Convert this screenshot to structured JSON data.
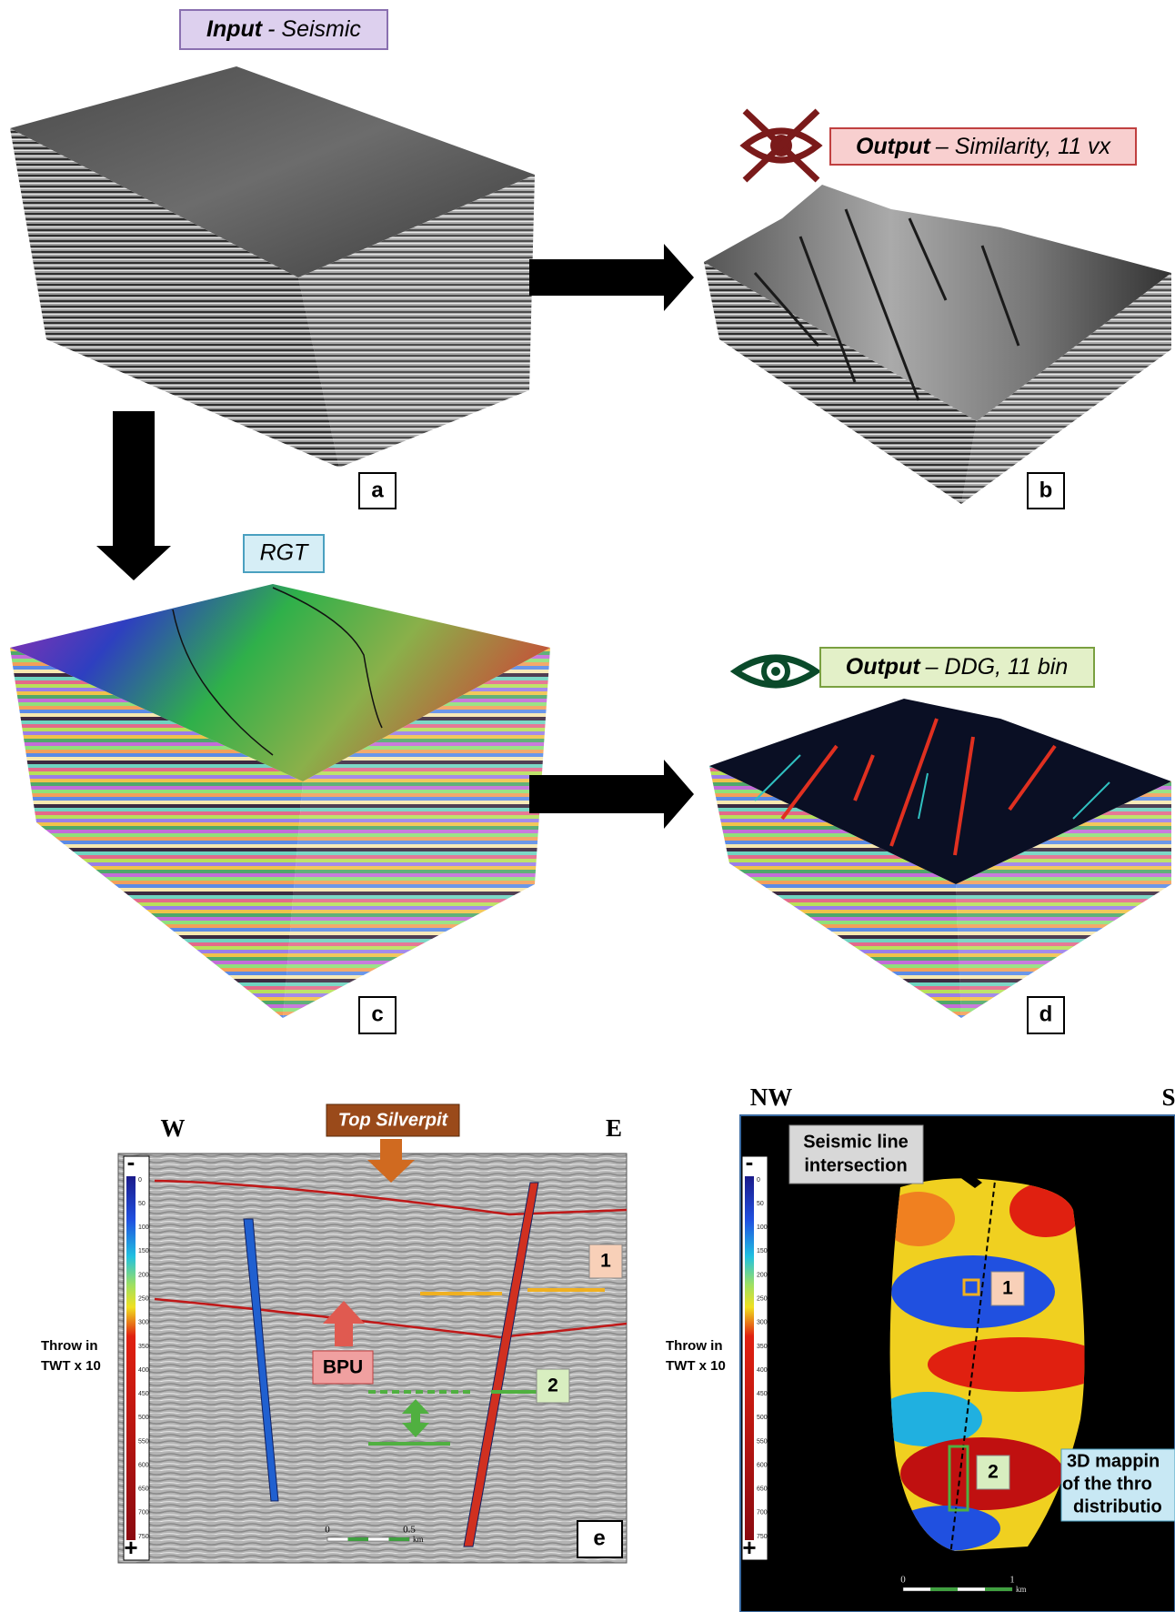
{
  "panels": {
    "a": {
      "title_bold": "Input",
      "title_rest": "- Seismic",
      "letter": "a"
    },
    "b": {
      "title_bold": "Output",
      "title_rest": "– Similarity, 11 vx",
      "letter": "b"
    },
    "c": {
      "title": "RGT",
      "letter": "c"
    },
    "d": {
      "title_bold": "Output",
      "title_rest": "– DDG, 11 bin",
      "letter": "d"
    },
    "e": {
      "west": "W",
      "east": "E",
      "horizon_top": "Top Silverpit",
      "horizon_base": "BPU",
      "marker_1": "1",
      "marker_2": "2",
      "colorbar_label": [
        "Throw in",
        "TWT x 10"
      ],
      "colorbar_ticks": [
        0,
        50,
        100,
        150,
        200,
        250,
        300,
        350,
        400,
        450,
        500,
        550,
        600,
        650,
        700,
        750
      ],
      "colorbar_min": "-",
      "colorbar_max": "+",
      "scale": [
        "0",
        "0.5",
        "km"
      ],
      "letter": "e"
    },
    "f": {
      "west": "NW",
      "east": "S",
      "callout": [
        "Seismic line",
        "intersection"
      ],
      "marker_1": "1",
      "marker_2": "2",
      "colorbar_label": [
        "Throw in",
        "TWT x 10"
      ],
      "colorbar_ticks": [
        0,
        50,
        100,
        150,
        200,
        250,
        300,
        350,
        400,
        450,
        500,
        550,
        600,
        650,
        700,
        750
      ],
      "colorbar_min": "-",
      "colorbar_max": "+",
      "scale": [
        "0",
        "1",
        "km"
      ],
      "note": [
        "3D mappin",
        "of the thro",
        "distributio"
      ]
    }
  }
}
